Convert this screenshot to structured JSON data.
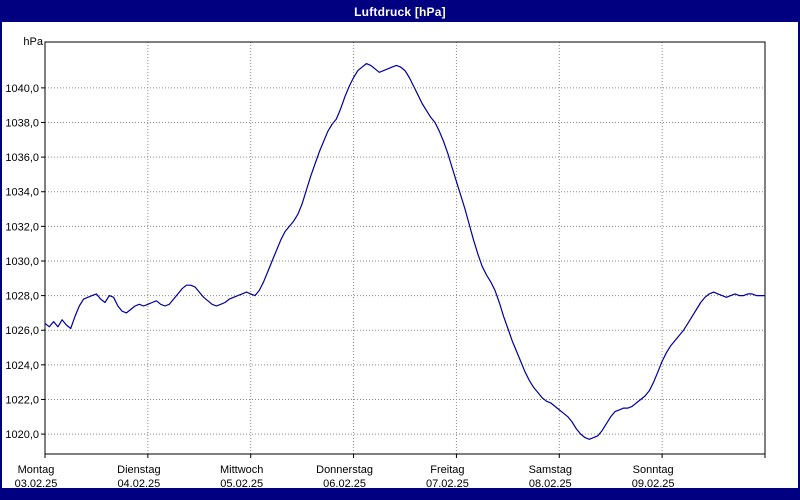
{
  "window": {
    "title": "Luftdruck [hPa]"
  },
  "chart_data": {
    "type": "line",
    "title": "Luftdruck [hPa]",
    "y_unit": "hPa",
    "ylim": [
      1018.85,
      1042.65
    ],
    "yticks": [
      1020,
      1022,
      1024,
      1026,
      1028,
      1030,
      1032,
      1034,
      1036,
      1038,
      1040
    ],
    "ytick_labels": [
      "1020,0",
      "1022,0",
      "1024,0",
      "1026,0",
      "1028,0",
      "1030,0",
      "1032,0",
      "1034,0",
      "1036,0",
      "1038,0",
      "1040,0"
    ],
    "x_range_hours": [
      0,
      168
    ],
    "day_tick_hours": [
      0,
      24,
      48,
      72,
      96,
      120,
      144,
      168
    ],
    "x_labels": [
      {
        "day": "Montag",
        "date": "03.02.25"
      },
      {
        "day": "Dienstag",
        "date": "04.02.25"
      },
      {
        "day": "Mittwoch",
        "date": "05.02.25"
      },
      {
        "day": "Donnerstag",
        "date": "06.02.25"
      },
      {
        "day": "Freitag",
        "date": "07.02.25"
      },
      {
        "day": "Samstag",
        "date": "08.02.25"
      },
      {
        "day": "Sonntag",
        "date": "09.02.25"
      }
    ],
    "grid": {
      "on": true,
      "color": "#8a8a8a",
      "style": "dotted"
    },
    "legend": "none",
    "colors": {
      "line": "#0000A0",
      "titlebar": "#000080",
      "plot_border": "#000000",
      "background": "#ffffff"
    },
    "series": [
      {
        "name": "Luftdruck",
        "color": "#0000A0",
        "x_start_hour": 0,
        "x_step_hours": 1,
        "values": [
          1026.4,
          1026.2,
          1026.5,
          1026.2,
          1026.6,
          1026.3,
          1026.1,
          1026.8,
          1027.4,
          1027.8,
          1027.9,
          1028.0,
          1028.1,
          1027.8,
          1027.6,
          1028.0,
          1027.9,
          1027.4,
          1027.1,
          1027.0,
          1027.2,
          1027.4,
          1027.5,
          1027.4,
          1027.5,
          1027.6,
          1027.7,
          1027.5,
          1027.4,
          1027.5,
          1027.8,
          1028.1,
          1028.4,
          1028.6,
          1028.6,
          1028.5,
          1028.2,
          1027.9,
          1027.7,
          1027.5,
          1027.4,
          1027.5,
          1027.6,
          1027.8,
          1027.9,
          1028.0,
          1028.1,
          1028.2,
          1028.1,
          1028.0,
          1028.3,
          1028.8,
          1029.4,
          1030.0,
          1030.6,
          1031.2,
          1031.7,
          1032.0,
          1032.3,
          1032.7,
          1033.3,
          1034.1,
          1034.9,
          1035.6,
          1036.3,
          1036.9,
          1037.5,
          1037.9,
          1038.2,
          1038.8,
          1039.5,
          1040.1,
          1040.6,
          1041.0,
          1041.2,
          1041.4,
          1041.3,
          1041.1,
          1040.9,
          1041.0,
          1041.1,
          1041.2,
          1041.3,
          1041.2,
          1041.0,
          1040.6,
          1040.1,
          1039.6,
          1039.1,
          1038.7,
          1038.3,
          1038.0,
          1037.5,
          1036.9,
          1036.2,
          1035.4,
          1034.6,
          1033.8,
          1033.0,
          1032.1,
          1031.2,
          1030.4,
          1029.7,
          1029.2,
          1028.8,
          1028.3,
          1027.6,
          1026.8,
          1026.1,
          1025.4,
          1024.8,
          1024.2,
          1023.6,
          1023.1,
          1022.7,
          1022.4,
          1022.1,
          1021.9,
          1021.8,
          1021.6,
          1021.4,
          1021.2,
          1021.0,
          1020.7,
          1020.3,
          1020.0,
          1019.8,
          1019.7,
          1019.8,
          1019.9,
          1020.2,
          1020.6,
          1021.0,
          1021.3,
          1021.4,
          1021.5,
          1021.5,
          1021.6,
          1021.8,
          1022.0,
          1022.2,
          1022.5,
          1023.0,
          1023.6,
          1024.2,
          1024.7,
          1025.1,
          1025.4,
          1025.7,
          1026.0,
          1026.4,
          1026.8,
          1027.2,
          1027.6,
          1027.9,
          1028.1,
          1028.2,
          1028.1,
          1028.0,
          1027.9,
          1028.0,
          1028.1,
          1028.0,
          1028.0,
          1028.1,
          1028.1,
          1028.0,
          1028.0,
          1028.0
        ]
      }
    ]
  }
}
